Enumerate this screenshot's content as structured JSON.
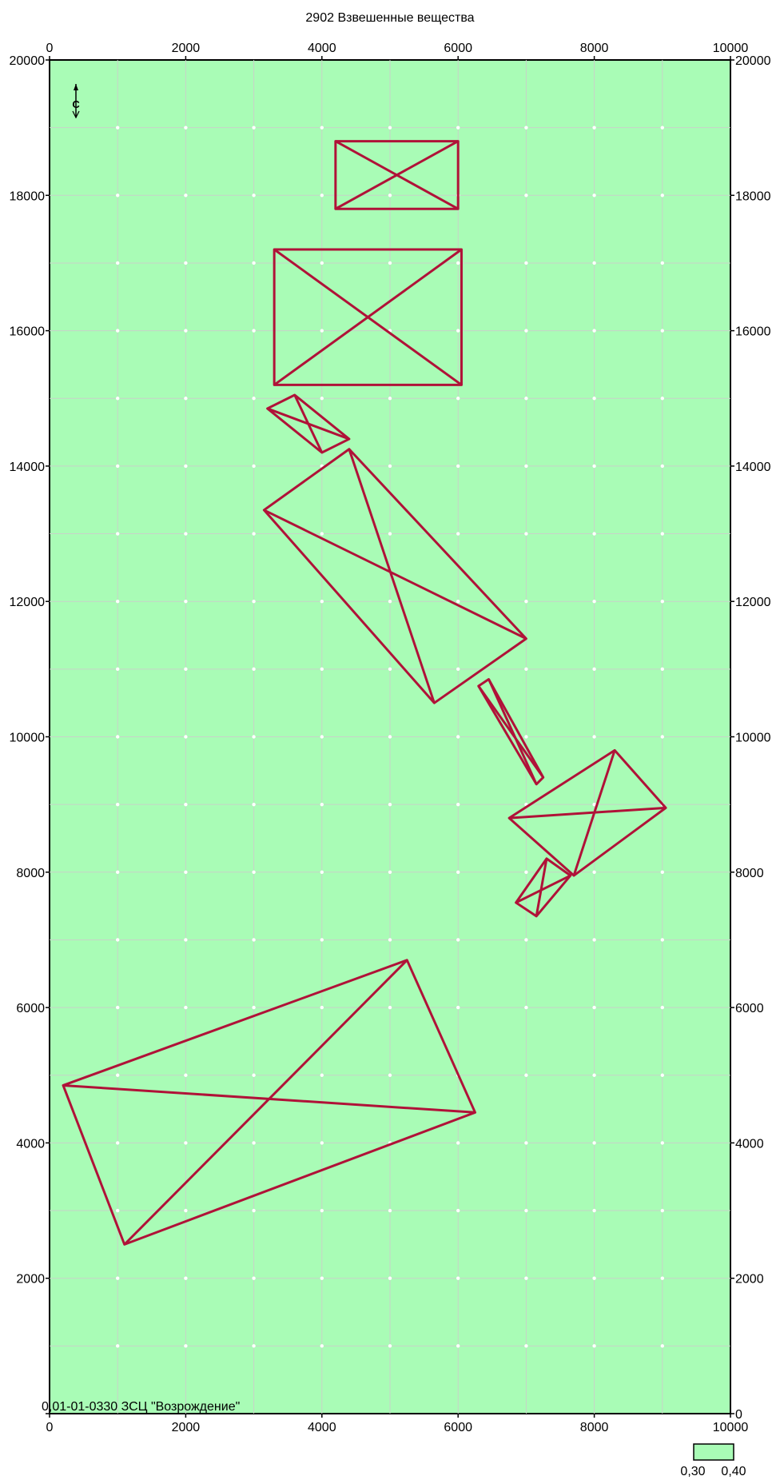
{
  "title": "2902 Взвешенные вещества",
  "footer_label": "0,01-01-0330 ЗСЦ  \"Возрождение\"",
  "north_letter": "С",
  "colors": {
    "map_fill": "#a9fcb6",
    "grid_line": "#c8d2c8",
    "grid_node": "#ffffff",
    "zone_outline": "#b01238",
    "frame": "#000000"
  },
  "x_axis": {
    "min": 0,
    "max": 10000,
    "ticks": [
      "0",
      "2000",
      "4000",
      "6000",
      "8000",
      "10000"
    ]
  },
  "y_axis": {
    "min": 0,
    "max": 20000,
    "ticks": [
      "0",
      "2000",
      "4000",
      "6000",
      "8000",
      "10000",
      "12000",
      "14000",
      "16000",
      "18000",
      "20000"
    ]
  },
  "grid_step": 1000,
  "zones": [
    {
      "name": "zone-rect-top",
      "corners": [
        [
          4200,
          18800
        ],
        [
          6000,
          18800
        ],
        [
          6000,
          17800
        ],
        [
          4200,
          17800
        ]
      ]
    },
    {
      "name": "zone-rect-large",
      "corners": [
        [
          3300,
          17200
        ],
        [
          6050,
          17200
        ],
        [
          6050,
          15200
        ],
        [
          3300,
          15200
        ]
      ]
    },
    {
      "name": "zone-small-diamond",
      "corners": [
        [
          3600,
          15050
        ],
        [
          4400,
          14400
        ],
        [
          4000,
          14200
        ],
        [
          3200,
          14850
        ]
      ]
    },
    {
      "name": "zone-big-diamond",
      "corners": [
        [
          4400,
          14250
        ],
        [
          7000,
          11450
        ],
        [
          5650,
          10500
        ],
        [
          3150,
          13350
        ]
      ]
    },
    {
      "name": "zone-narrow-strip",
      "corners": [
        [
          6450,
          10850
        ],
        [
          7250,
          9400
        ],
        [
          7150,
          9300
        ],
        [
          6300,
          10750
        ]
      ]
    },
    {
      "name": "zone-right-quad",
      "corners": [
        [
          8300,
          9800
        ],
        [
          9050,
          8950
        ],
        [
          7700,
          7950
        ],
        [
          6750,
          8800
        ]
      ]
    },
    {
      "name": "zone-small-quad",
      "corners": [
        [
          7300,
          8200
        ],
        [
          7650,
          7950
        ],
        [
          7150,
          7350
        ],
        [
          6850,
          7550
        ]
      ]
    },
    {
      "name": "zone-bottom-large",
      "corners": [
        [
          5250,
          6700
        ],
        [
          6250,
          4450
        ],
        [
          1100,
          2500
        ],
        [
          200,
          4850
        ]
      ]
    }
  ],
  "legend": {
    "fill": "#a9fcb6",
    "labels": [
      "0,30",
      "0,40"
    ]
  }
}
